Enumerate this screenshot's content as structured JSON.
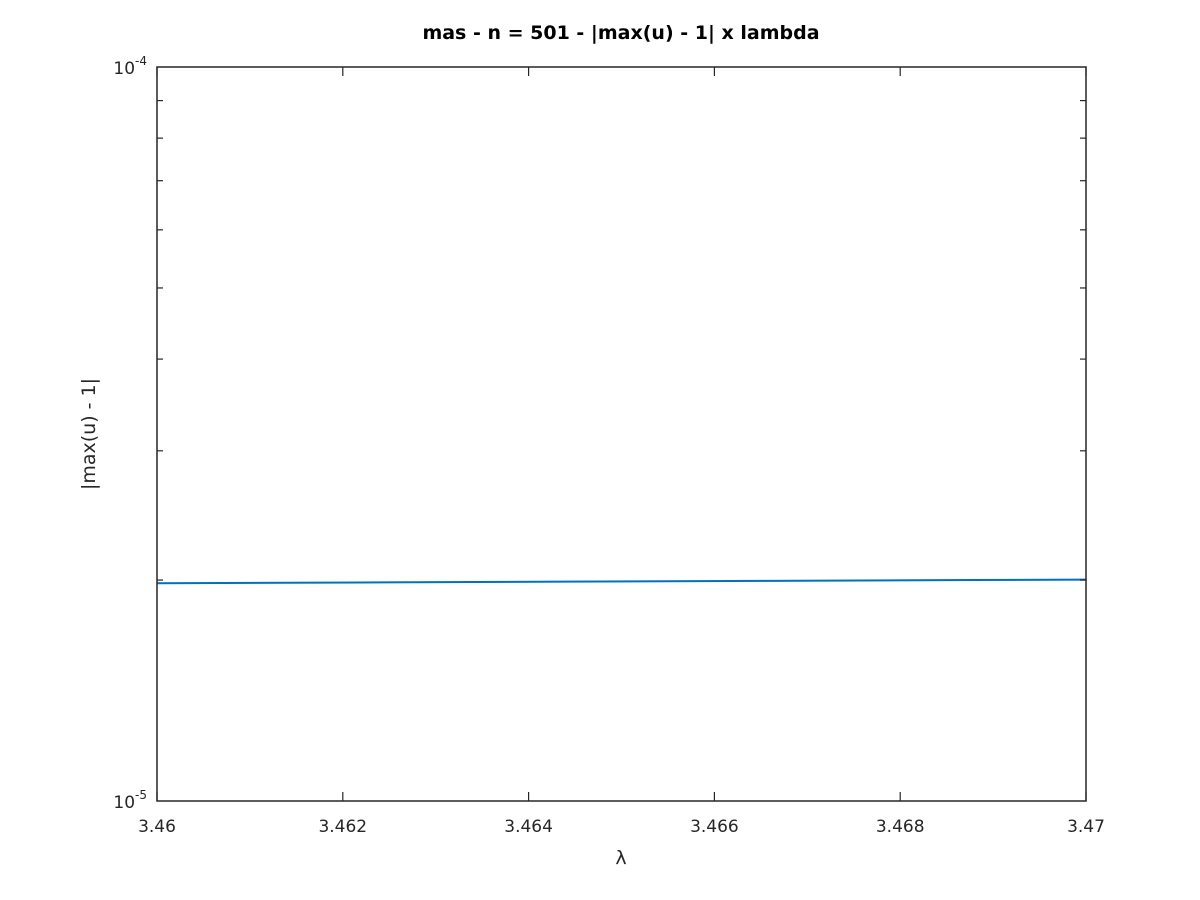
{
  "chart_data": {
    "type": "line",
    "title": "mas - n = 501 - |max(u) - 1| x lambda",
    "xlabel": "λ",
    "ylabel": "|max(u) - 1|",
    "xlim": [
      3.46,
      3.47
    ],
    "ylim": [
      1e-05,
      0.0001
    ],
    "yscale": "log",
    "xticks": [
      "3.46",
      "3.462",
      "3.464",
      "3.466",
      "3.468",
      "3.47"
    ],
    "xtick_values": [
      3.46,
      3.462,
      3.464,
      3.466,
      3.468,
      3.47
    ],
    "yticks": [
      {
        "value": 1e-05,
        "base": "10",
        "exp": "-5"
      },
      {
        "value": 0.0001,
        "base": "10",
        "exp": "-4"
      }
    ],
    "grid": false,
    "box": true,
    "series": [
      {
        "color": "#0072BD",
        "x": [
          3.46,
          3.4622,
          3.4644,
          3.4666,
          3.4688,
          3.47
        ],
        "y": [
          1.98e-05,
          1.985e-05,
          1.99e-05,
          1.995e-05,
          2e-05,
          2.003e-05
        ]
      }
    ]
  }
}
